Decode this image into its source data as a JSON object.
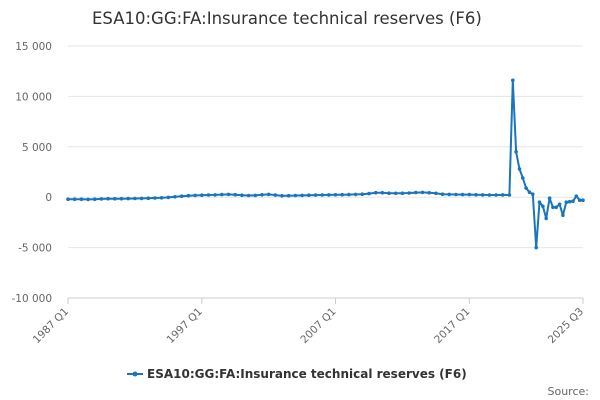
{
  "chart_data": {
    "type": "line",
    "title": "ESA10:GG:FA:Insurance technical reserves (F6)",
    "xlabel": "",
    "ylabel": "",
    "ylim": [
      -10000,
      15000
    ],
    "yticks": [
      15000,
      10000,
      5000,
      0,
      -5000,
      -10000
    ],
    "ytick_labels": [
      "15 000",
      "10 000",
      "5 000",
      "0",
      "-5 000",
      "-10 000"
    ],
    "xticks": [
      "1987 Q1",
      "1997 Q1",
      "2007 Q1",
      "2017 Q1",
      "2025 Q3"
    ],
    "legend_position": "bottom",
    "grid": true,
    "color": "#1a75bc",
    "series": [
      {
        "name": "ESA10:GG:FA:Insurance technical reserves (F6)",
        "points": [
          [
            "1987 Q1",
            -200
          ],
          [
            "1987 Q3",
            -200
          ],
          [
            "1988 Q1",
            -200
          ],
          [
            "1988 Q3",
            -220
          ],
          [
            "1989 Q1",
            -200
          ],
          [
            "1989 Q3",
            -170
          ],
          [
            "1990 Q1",
            -150
          ],
          [
            "1990 Q3",
            -160
          ],
          [
            "1991 Q1",
            -150
          ],
          [
            "1991 Q3",
            -140
          ],
          [
            "1992 Q1",
            -130
          ],
          [
            "1992 Q3",
            -120
          ],
          [
            "1993 Q1",
            -100
          ],
          [
            "1993 Q3",
            -80
          ],
          [
            "1994 Q1",
            -60
          ],
          [
            "1994 Q3",
            -20
          ],
          [
            "1995 Q1",
            40
          ],
          [
            "1995 Q3",
            100
          ],
          [
            "1996 Q1",
            150
          ],
          [
            "1996 Q3",
            180
          ],
          [
            "1997 Q1",
            200
          ],
          [
            "1997 Q3",
            220
          ],
          [
            "1998 Q1",
            230
          ],
          [
            "1998 Q3",
            260
          ],
          [
            "1999 Q1",
            280
          ],
          [
            "1999 Q3",
            250
          ],
          [
            "2000 Q1",
            200
          ],
          [
            "2000 Q3",
            170
          ],
          [
            "2001 Q1",
            180
          ],
          [
            "2001 Q3",
            240
          ],
          [
            "2002 Q1",
            280
          ],
          [
            "2002 Q3",
            210
          ],
          [
            "2003 Q1",
            140
          ],
          [
            "2003 Q3",
            150
          ],
          [
            "2004 Q1",
            170
          ],
          [
            "2004 Q3",
            180
          ],
          [
            "2005 Q1",
            200
          ],
          [
            "2005 Q3",
            210
          ],
          [
            "2006 Q1",
            220
          ],
          [
            "2006 Q3",
            230
          ],
          [
            "2007 Q1",
            240
          ],
          [
            "2007 Q3",
            250
          ],
          [
            "2008 Q1",
            260
          ],
          [
            "2008 Q3",
            280
          ],
          [
            "2009 Q1",
            300
          ],
          [
            "2009 Q3",
            360
          ],
          [
            "2010 Q1",
            450
          ],
          [
            "2010 Q3",
            440
          ],
          [
            "2011 Q1",
            400
          ],
          [
            "2011 Q3",
            390
          ],
          [
            "2012 Q1",
            400
          ],
          [
            "2012 Q3",
            420
          ],
          [
            "2013 Q1",
            460
          ],
          [
            "2013 Q3",
            480
          ],
          [
            "2014 Q1",
            440
          ],
          [
            "2014 Q3",
            390
          ],
          [
            "2015 Q1",
            300
          ],
          [
            "2015 Q3",
            280
          ],
          [
            "2016 Q1",
            270
          ],
          [
            "2016 Q3",
            260
          ],
          [
            "2017 Q1",
            260
          ],
          [
            "2017 Q3",
            240
          ],
          [
            "2018 Q1",
            230
          ],
          [
            "2018 Q3",
            220
          ],
          [
            "2019 Q1",
            220
          ],
          [
            "2019 Q3",
            230
          ],
          [
            "2020 Q1",
            220
          ],
          [
            "2020 Q2",
            11600
          ],
          [
            "2020 Q3",
            4500
          ],
          [
            "2020 Q4",
            2800
          ],
          [
            "2021 Q1",
            1900
          ],
          [
            "2021 Q2",
            900
          ],
          [
            "2021 Q3",
            500
          ],
          [
            "2021 Q4",
            300
          ],
          [
            "2022 Q1",
            -5000
          ],
          [
            "2022 Q2",
            -500
          ],
          [
            "2022 Q3",
            -900
          ],
          [
            "2022 Q4",
            -2100
          ],
          [
            "2023 Q1",
            -100
          ],
          [
            "2023 Q2",
            -1000
          ],
          [
            "2023 Q3",
            -1000
          ],
          [
            "2023 Q4",
            -700
          ],
          [
            "2024 Q1",
            -1800
          ],
          [
            "2024 Q2",
            -500
          ],
          [
            "2024 Q3",
            -450
          ],
          [
            "2024 Q4",
            -400
          ],
          [
            "2025 Q1",
            100
          ],
          [
            "2025 Q2",
            -300
          ],
          [
            "2025 Q3",
            -300
          ]
        ]
      }
    ]
  },
  "footer": {
    "source_label": "Source:"
  }
}
